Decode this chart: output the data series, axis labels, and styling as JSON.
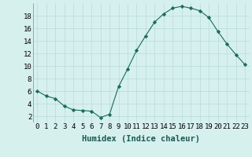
{
  "x": [
    0,
    1,
    2,
    3,
    4,
    5,
    6,
    7,
    8,
    9,
    10,
    11,
    12,
    13,
    14,
    15,
    16,
    17,
    18,
    19,
    20,
    21,
    22,
    23
  ],
  "y": [
    6.0,
    5.2,
    4.8,
    3.6,
    3.0,
    2.9,
    2.8,
    1.8,
    2.3,
    6.7,
    9.5,
    12.5,
    14.8,
    17.0,
    18.3,
    19.2,
    19.5,
    19.2,
    18.8,
    17.7,
    15.5,
    13.5,
    11.8,
    10.2
  ],
  "line_color": "#1a6b5a",
  "marker": "D",
  "marker_size": 2.2,
  "bg_color": "#d6f0ee",
  "grid_color": "#b8dbd8",
  "xlabel": "Humidex (Indice chaleur)",
  "xlim": [
    -0.5,
    23.5
  ],
  "ylim": [
    1,
    20
  ],
  "xtick_labels": [
    "0",
    "1",
    "2",
    "3",
    "4",
    "5",
    "6",
    "7",
    "8",
    "9",
    "10",
    "11",
    "12",
    "13",
    "14",
    "15",
    "16",
    "17",
    "18",
    "19",
    "20",
    "21",
    "22",
    "23"
  ],
  "ytick_values": [
    2,
    4,
    6,
    8,
    10,
    12,
    14,
    16,
    18
  ],
  "xlabel_fontsize": 7.5,
  "tick_fontsize": 6.5
}
